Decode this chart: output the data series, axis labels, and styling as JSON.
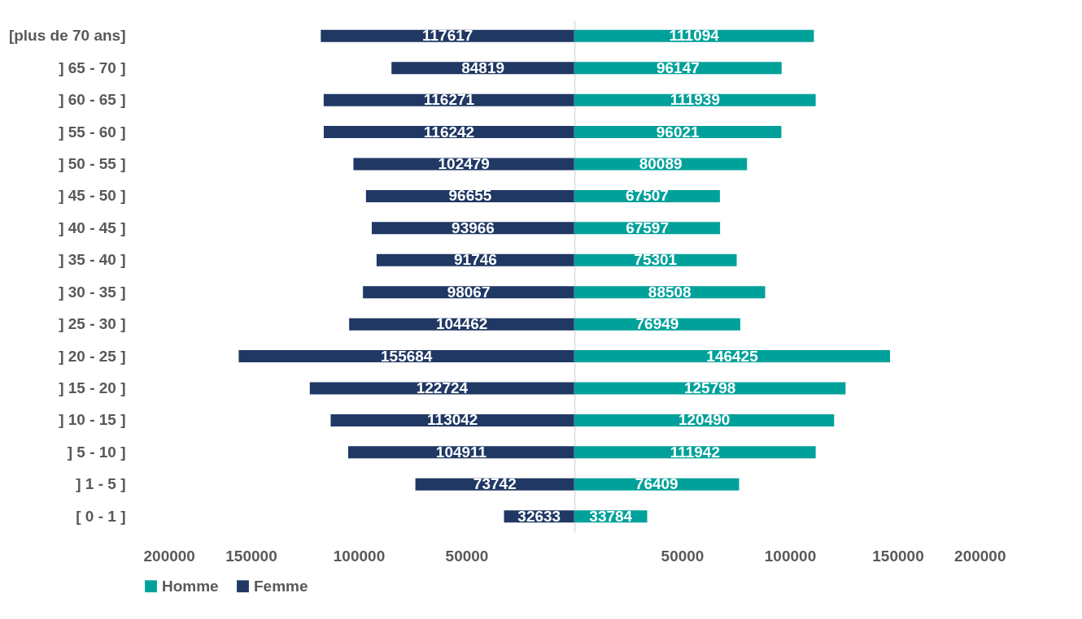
{
  "chart_data": [
    {
      "type": "bar",
      "orientation": "horizontal",
      "data_labels": true,
      "legend": "bottom",
      "grid": false,
      "categories": [
        "[plus de 70 ans]",
        "] 65 - 70 ]",
        "] 60 - 65 ]",
        "] 55 - 60 ]",
        "] 50 - 55 ]",
        "] 45 - 50 ]",
        "] 40 - 45 ]",
        "] 35 - 40 ]",
        "] 30 - 35 ]",
        "] 25 - 30 ]",
        "] 20 - 25 ]",
        "] 15 - 20 ]",
        "] 10 - 15 ]",
        "] 5 - 10 ]",
        "] 1 - 5 ]",
        "[ 0 - 1 ]"
      ],
      "series": [
        {
          "name": "Femme",
          "color": "#203864",
          "values": [
            117617,
            84819,
            116271,
            116242,
            102479,
            96655,
            93966,
            91746,
            98067,
            104462,
            155684,
            122724,
            113042,
            104911,
            73742,
            32633
          ]
        }
      ],
      "xlim": [
        200000,
        0
      ],
      "xticks": [
        200000,
        150000,
        100000,
        50000
      ]
    },
    {
      "type": "bar",
      "orientation": "horizontal",
      "data_labels": true,
      "legend": "bottom",
      "grid": false,
      "tick_labels": "x",
      "series": [
        {
          "name": "Homme",
          "color": "#00a19a",
          "values": [
            111094,
            96147,
            111939,
            96021,
            80089,
            67507,
            67597,
            75301,
            88508,
            76949,
            146425,
            125798,
            120490,
            111942,
            76409,
            33784
          ]
        }
      ],
      "xlim": [
        0,
        200000
      ],
      "xticks": [
        50000,
        100000,
        150000,
        200000
      ]
    }
  ]
}
